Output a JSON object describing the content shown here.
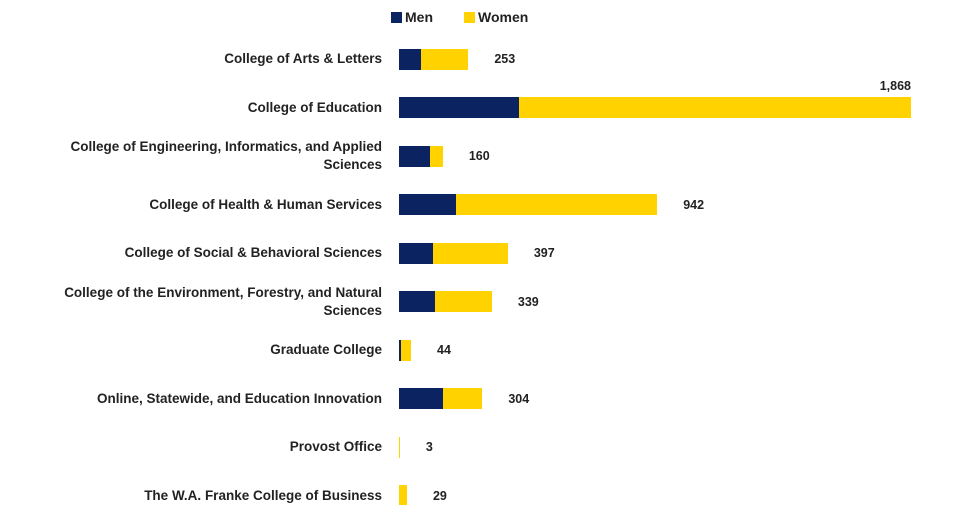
{
  "chart_data": {
    "type": "bar",
    "orientation": "horizontal",
    "stacked": true,
    "categories": [
      "College of Arts & Letters",
      "College of Education",
      "College of Engineering, Informatics, and Applied Sciences",
      "College of Health & Human Services",
      "College of Social & Behavioral Sciences",
      "College of the Environment, Forestry, and Natural Sciences",
      "Graduate College",
      "Online, Statewide, and Education Innovation",
      "Provost Office",
      "The W.A. Franke College of Business"
    ],
    "series": [
      {
        "name": "Men",
        "color": "#0b2461",
        "values": [
          80,
          438,
          113,
          208,
          124,
          131,
          7,
          161,
          0,
          0
        ]
      },
      {
        "name": "Women",
        "color": "#ffd200",
        "values": [
          173,
          1430,
          47,
          734,
          273,
          208,
          37,
          143,
          3,
          29
        ]
      }
    ],
    "totals": {
      "values": [
        253,
        1868,
        160,
        942,
        397,
        339,
        44,
        304,
        3,
        29
      ],
      "value_labels": [
        "253",
        "1,868",
        "160",
        "942",
        "397",
        "339",
        "44",
        "304",
        "3",
        "29"
      ]
    },
    "legend": "top"
  }
}
